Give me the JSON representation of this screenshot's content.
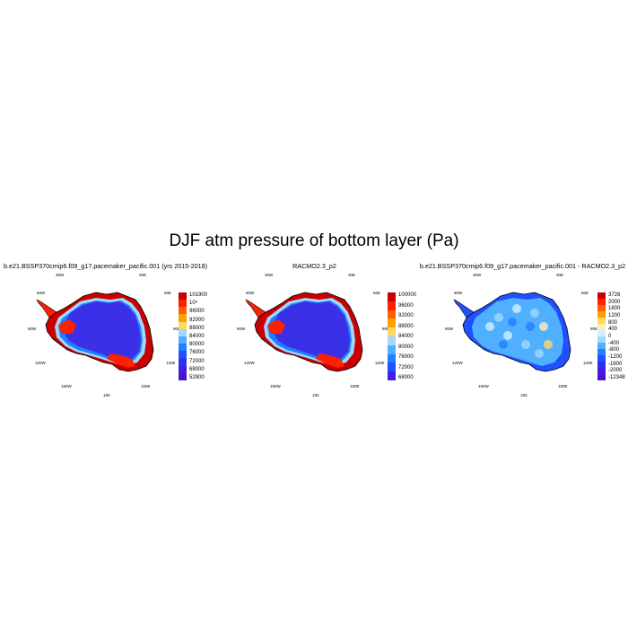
{
  "figure_title": "DJF atm pressure of bottom layer (Pa)",
  "panels": [
    {
      "title": "b.e21.BSSP370cmip6.f09_g17.pacemaker_pacific.001 (yrs 2015-2018)",
      "lon_labels": {
        "top_left": "30W",
        "top_right": "30E",
        "upper_left": "60W",
        "upper_right": "60E",
        "left": "90W",
        "right": "90E",
        "lower_left": "120W",
        "lower_right": "120E",
        "bottom_left": "150W",
        "bottom_right": "150E",
        "bottom": "180"
      },
      "colorbar": {
        "labels": [
          "101900",
          "10⁵",
          "96000",
          "92000",
          "88000",
          "84000",
          "80000",
          "76000",
          "72000",
          "68000",
          "52900"
        ],
        "colors": [
          "#c80000",
          "#ff2000",
          "#ff6000",
          "#ffa000",
          "#ffd860",
          "#a0d8ff",
          "#50b0ff",
          "#2080ff",
          "#2050ff",
          "#3030f0",
          "#4020e0",
          "#5010d0"
        ]
      }
    },
    {
      "title": "RACMO2.3_p2",
      "lon_labels": {
        "top_left": "30W",
        "top_right": "30E",
        "upper_left": "60W",
        "upper_right": "60E",
        "left": "90W",
        "right": "90E",
        "lower_left": "120W",
        "lower_right": "120E",
        "bottom_left": "150W",
        "bottom_right": "150E",
        "bottom": "180"
      },
      "colorbar": {
        "labels": [
          "100000",
          "96000",
          "92000",
          "88000",
          "84000",
          "80000",
          "76000",
          "72000",
          "68000"
        ],
        "colors": [
          "#c80000",
          "#ff2000",
          "#ff6000",
          "#ffa000",
          "#ffd860",
          "#a0d8ff",
          "#50b0ff",
          "#2080ff",
          "#2050ff",
          "#4020e0"
        ]
      }
    },
    {
      "title": "b.e21.BSSP370cmip6.f09_g17.pacemaker_pacific.001 - RACMO2.3_p2",
      "lon_labels": {
        "top_left": "30W",
        "top_right": "30E",
        "upper_left": "60W",
        "upper_right": "60E",
        "left": "90W",
        "right": "90E",
        "lower_left": "120W",
        "lower_right": "120E",
        "bottom_left": "150W",
        "bottom_right": "150E",
        "bottom": "180"
      },
      "colorbar": {
        "labels": [
          "3726",
          "2000",
          "1600",
          "1200",
          "800",
          "400",
          "0",
          "-400",
          "-800",
          "-1200",
          "-1600",
          "-2000",
          "-12348"
        ],
        "colors": [
          "#c80000",
          "#ff2000",
          "#ff6000",
          "#ffa000",
          "#ffd860",
          "#fff0b0",
          "#d0f0ff",
          "#a0d8ff",
          "#50b0ff",
          "#2080ff",
          "#2050ff",
          "#3030f0",
          "#4020e0",
          "#5010d0"
        ]
      }
    }
  ],
  "map_colors": {
    "interior": "#3a30e8",
    "ring": "#2080ff",
    "coast_warm": "#ff2000",
    "coast_hot": "#c80000",
    "mid": "#a0d8ff"
  }
}
